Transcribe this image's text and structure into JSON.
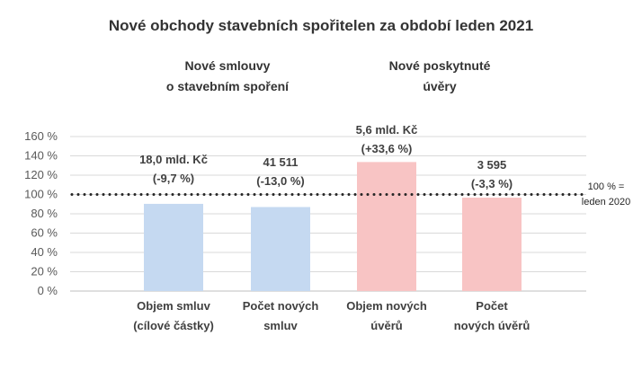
{
  "chart_data": {
    "type": "bar",
    "title": "Nové obchody stavebních spořitelen za období leden 2021",
    "groups": [
      {
        "label_lines": [
          "Nové smlouvy",
          "o stavebním spoření"
        ]
      },
      {
        "label_lines": [
          "Nové poskytnuté",
          "úvěry"
        ]
      }
    ],
    "categories": [
      [
        "Objem smluv",
        "(cílové částky)"
      ],
      [
        "Počet  nových",
        "smluv"
      ],
      [
        "Objem nových",
        "úvěrů"
      ],
      [
        "Počet",
        "nových úvěrů"
      ]
    ],
    "values": [
      90.3,
      87.0,
      133.6,
      96.7
    ],
    "value_unit": "%",
    "data_labels": [
      [
        "18,0 mld. Kč",
        "(-9,7 %)"
      ],
      [
        "41 511",
        "(-13,0 %)"
      ],
      [
        "5,6 mld. Kč",
        "(+33,6 %)"
      ],
      [
        "3 595",
        "(-3,3 %)"
      ]
    ],
    "bar_colors": [
      "#c5d9f1",
      "#c5d9f1",
      "#f8c4c4",
      "#f8c4c4"
    ],
    "ylim": [
      0,
      160
    ],
    "yticks": [
      0,
      20,
      40,
      60,
      80,
      100,
      120,
      140,
      160
    ],
    "ytick_labels": [
      "0 %",
      "20 %",
      "40 %",
      "60 %",
      "80 %",
      "100 %",
      "120 %",
      "140 %",
      "160 %"
    ],
    "reference_line": {
      "value": 100,
      "style": "dotted",
      "label_lines": [
        "100 % =",
        "leden 2020"
      ]
    },
    "grid": true,
    "legend": "none"
  }
}
